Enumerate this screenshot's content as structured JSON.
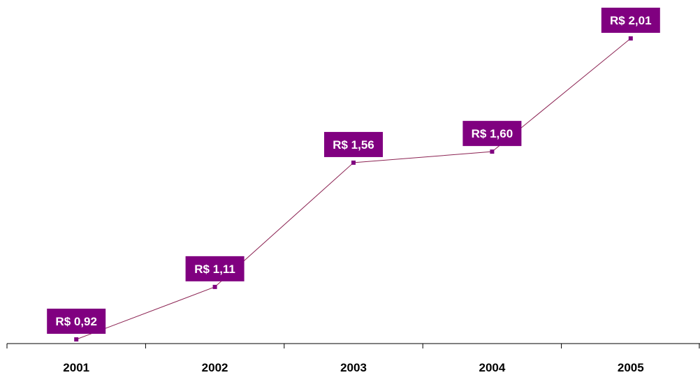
{
  "chart_data": {
    "type": "line",
    "title": "",
    "xlabel": "",
    "ylabel": "",
    "categories": [
      "2001",
      "2002",
      "2003",
      "2004",
      "2005"
    ],
    "series": [
      {
        "values": [
          0.92,
          1.11,
          1.56,
          1.6,
          2.01
        ],
        "data_labels": [
          "R$ 0,92",
          "R$ 1,11",
          "R$ 1,56",
          "R$ 1,60",
          "R$ 2,01"
        ]
      }
    ],
    "ylim": [
      0.9,
      2.1
    ],
    "grid": false,
    "legend": "none",
    "colors": {
      "line": "#8b2252",
      "marker": "#800080",
      "label_background": "#800080",
      "label_text": "#ffffff",
      "axis": "#000000"
    }
  }
}
